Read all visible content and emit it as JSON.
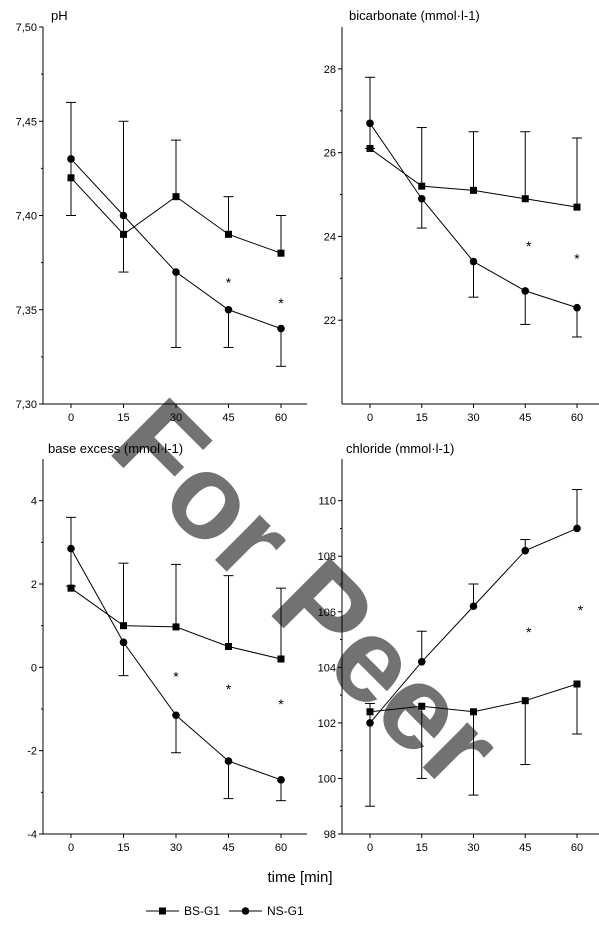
{
  "watermark": "For Peer",
  "xlabel": "time [min]",
  "legend": [
    "BS-G1",
    "NS-G1"
  ],
  "chart_data": [
    {
      "type": "line",
      "title": "pH",
      "x": [
        0,
        15,
        30,
        45,
        60
      ],
      "xticks": [
        "0",
        "15",
        "30",
        "45",
        "60"
      ],
      "ylim": [
        7.3,
        7.5
      ],
      "yticks": [
        7.3,
        7.35,
        7.4,
        7.45,
        7.5
      ],
      "ytick_labels": [
        "7,30",
        "7,35",
        "7,40",
        "7,45",
        "7,50"
      ],
      "series": [
        {
          "name": "BS-G1",
          "marker": "square",
          "values": [
            7.42,
            7.39,
            7.41,
            7.39,
            7.38
          ],
          "err_up": [
            0,
            0.06,
            0.03,
            0.02,
            0.02
          ],
          "err_down": [
            0,
            0,
            0,
            0,
            0
          ]
        },
        {
          "name": "NS-G1",
          "marker": "circle",
          "values": [
            7.43,
            7.4,
            7.37,
            7.35,
            7.34
          ],
          "err_up": [
            0.03,
            0,
            0,
            0,
            0
          ],
          "err_down": [
            0.03,
            0.03,
            0.04,
            0.02,
            0.02
          ]
        }
      ],
      "annotations": [
        {
          "text": "*",
          "x": 45,
          "y": 7.365
        },
        {
          "text": "*",
          "x": 60,
          "y": 7.354
        }
      ]
    },
    {
      "type": "line",
      "title": "bicarbonate (mmol·l-1)",
      "x": [
        0,
        15,
        30,
        45,
        60
      ],
      "xticks": [
        "0",
        "15",
        "30",
        "45",
        "60"
      ],
      "ylim": [
        20.0,
        29.0
      ],
      "yticks": [
        22,
        24,
        26,
        28
      ],
      "ytick_labels": [
        "22",
        "24",
        "26",
        "28"
      ],
      "series": [
        {
          "name": "BS-G1",
          "marker": "square",
          "values": [
            26.1,
            25.2,
            25.1,
            24.9,
            24.7
          ],
          "err_up": [
            0,
            1.4,
            1.4,
            1.6,
            1.65
          ],
          "err_down": [
            0,
            0,
            0,
            0,
            0
          ]
        },
        {
          "name": "NS-G1",
          "marker": "circle",
          "values": [
            26.7,
            24.9,
            23.4,
            22.7,
            22.3
          ],
          "err_up": [
            1.1,
            0,
            0,
            0,
            0
          ],
          "err_down": [
            0.6,
            0.7,
            0.85,
            0.8,
            0.7
          ]
        }
      ],
      "annotations": [
        {
          "text": "*",
          "x": 46,
          "y": 23.8
        },
        {
          "text": "*",
          "x": 60,
          "y": 23.5
        }
      ]
    },
    {
      "type": "line",
      "title": "base excess (mmol·l-1)",
      "x": [
        0,
        15,
        30,
        45,
        60
      ],
      "xticks": [
        "0",
        "15",
        "30",
        "45",
        "60"
      ],
      "ylim": [
        -4,
        5
      ],
      "yticks": [
        -4,
        -2,
        0,
        2,
        4
      ],
      "ytick_labels": [
        "-4",
        "-2",
        "0",
        "2",
        "4"
      ],
      "series": [
        {
          "name": "BS-G1",
          "marker": "square",
          "values": [
            1.9,
            1.0,
            0.97,
            0.5,
            0.2
          ],
          "err_up": [
            0,
            1.5,
            1.5,
            1.7,
            1.7
          ],
          "err_down": [
            0,
            0,
            0,
            0,
            0
          ]
        },
        {
          "name": "NS-G1",
          "marker": "circle",
          "values": [
            2.85,
            0.6,
            -1.15,
            -2.25,
            -2.7
          ],
          "err_up": [
            0.75,
            0,
            0,
            0,
            0
          ],
          "err_down": [
            0.9,
            0.8,
            0.9,
            0.9,
            0.5
          ]
        }
      ],
      "annotations": [
        {
          "text": "*",
          "x": 30,
          "y": -0.2
        },
        {
          "text": "*",
          "x": 45,
          "y": -0.5
        },
        {
          "text": "*",
          "x": 60,
          "y": -0.85
        }
      ]
    },
    {
      "type": "line",
      "title": "chloride (mmol·l-1)",
      "x": [
        0,
        15,
        30,
        45,
        60
      ],
      "xticks": [
        "0",
        "15",
        "30",
        "45",
        "60"
      ],
      "ylim": [
        98,
        111.5
      ],
      "yticks": [
        98,
        100,
        102,
        104,
        106,
        108,
        110
      ],
      "ytick_labels": [
        "98",
        "100",
        "102",
        "104",
        "106",
        "108",
        "110"
      ],
      "series": [
        {
          "name": "BS-G1",
          "marker": "square",
          "values": [
            102.4,
            102.6,
            102.4,
            102.8,
            103.4
          ],
          "err_up": [
            0,
            0,
            0,
            0,
            0
          ],
          "err_down": [
            0,
            2.6,
            3.0,
            2.3,
            1.8
          ]
        },
        {
          "name": "NS-G1",
          "marker": "circle",
          "values": [
            102.0,
            104.2,
            106.2,
            108.2,
            109.0
          ],
          "err_up": [
            0.7,
            1.1,
            0.8,
            0.4,
            1.4
          ],
          "err_down": [
            3.0,
            0,
            0,
            0,
            0
          ]
        }
      ],
      "annotations": [
        {
          "text": "*",
          "x": 46,
          "y": 105.3
        },
        {
          "text": "*",
          "x": 61,
          "y": 106.1
        }
      ]
    }
  ]
}
